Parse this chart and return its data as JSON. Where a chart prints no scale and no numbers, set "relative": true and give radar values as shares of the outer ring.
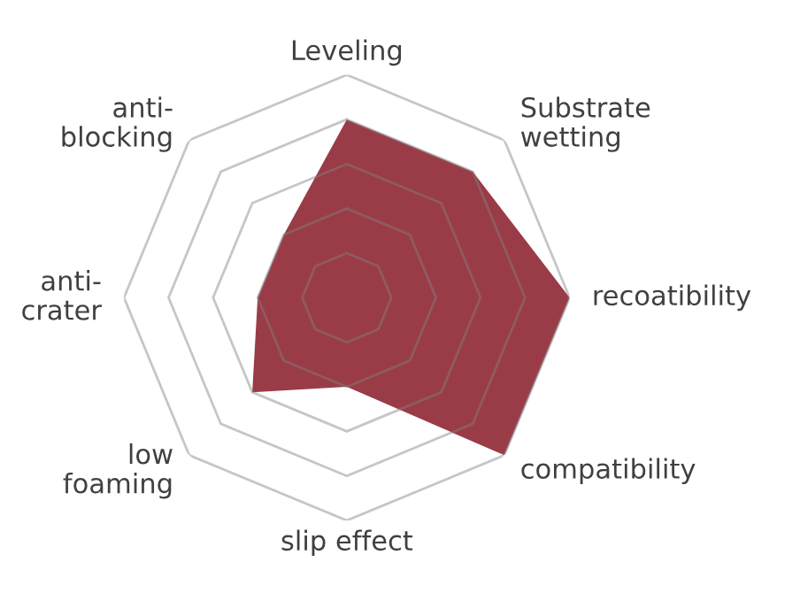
{
  "chart_data": {
    "type": "radar",
    "relative": true,
    "categories": [
      "Leveling",
      "Substrate\nwetting",
      "recoatibility",
      "compatibility",
      "slip effect",
      "low\nfoaming",
      "anti-\ncrater",
      "anti-\nblocking"
    ],
    "series": [
      {
        "color": "#9a3c48",
        "values": [
          0.8,
          0.8,
          1,
          1,
          0.4,
          0.6,
          0.4,
          0.4
        ]
      }
    ]
  }
}
